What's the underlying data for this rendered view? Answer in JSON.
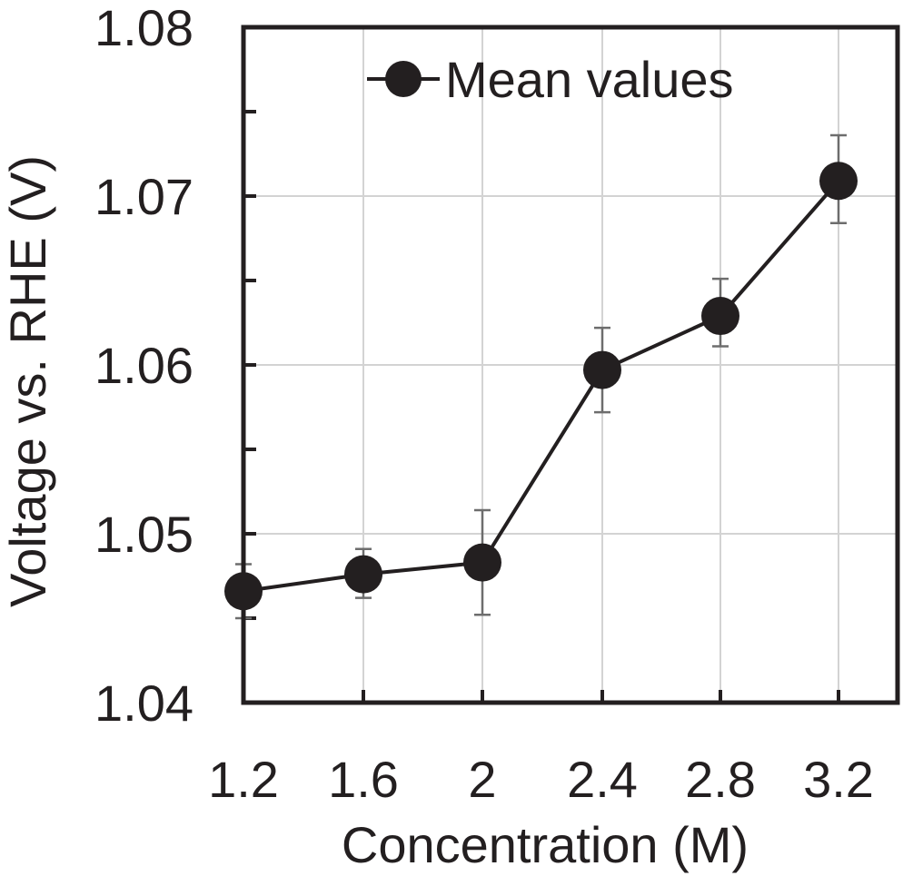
{
  "chart_data": {
    "type": "line",
    "xlabel": "Concentration (M)",
    "ylabel": "Voltage vs. RHE (V)",
    "xlim": [
      1.2,
      3.2
    ],
    "ylim": [
      1.04,
      1.08
    ],
    "x_ticks": [
      "1.2",
      "1.6",
      "2",
      "2.4",
      "2.8",
      "3.2"
    ],
    "x_tick_values": [
      1.2,
      1.6,
      2.0,
      2.4,
      2.8,
      3.2
    ],
    "y_ticks": [
      "1.04",
      "1.05",
      "1.06",
      "1.07",
      "1.08"
    ],
    "y_tick_values": [
      1.04,
      1.05,
      1.06,
      1.07,
      1.08
    ],
    "y_minor_tick_values": [
      1.045,
      1.055,
      1.065,
      1.075
    ],
    "grid": true,
    "legend_position": "top-right",
    "series": [
      {
        "name": "Mean values",
        "color": "#231f20",
        "x": [
          1.2,
          1.6,
          2.0,
          2.4,
          2.8,
          3.2
        ],
        "y": [
          1.0466,
          1.0476,
          1.0483,
          1.0597,
          1.0629,
          1.0709
        ],
        "error_low": [
          1.045,
          1.0462,
          1.0452,
          1.0572,
          1.0611,
          1.0684
        ],
        "error_high": [
          1.0482,
          1.0491,
          1.0514,
          1.0622,
          1.0651,
          1.0736
        ]
      }
    ]
  }
}
